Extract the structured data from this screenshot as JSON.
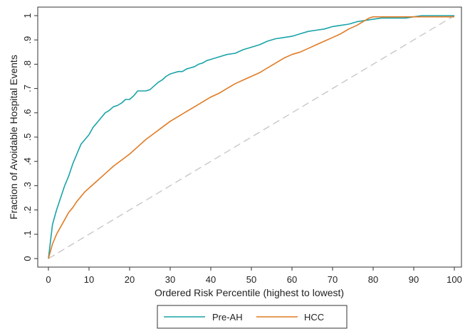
{
  "chart_data": {
    "type": "line",
    "title": "",
    "xlabel": "Ordered Risk Percentile (highest to lowest)",
    "ylabel": "Fraction of Avoidable Hospital Events",
    "xlim": [
      0,
      100
    ],
    "ylim": [
      0,
      1
    ],
    "xticks": [
      "0",
      "10",
      "20",
      "30",
      "40",
      "50",
      "60",
      "70",
      "80",
      "90",
      "100"
    ],
    "yticks": [
      "0",
      ".1",
      ".2",
      ".3",
      ".4",
      ".5",
      ".6",
      ".7",
      ".8",
      ".9",
      "1"
    ],
    "grid": false,
    "legend_position": "bottom-center",
    "series": [
      {
        "name": "Pre-AH",
        "color": "#1aa3a8",
        "x": [
          0,
          1,
          2,
          3,
          4,
          5,
          6,
          7,
          8,
          9,
          10,
          11,
          12,
          13,
          14,
          15,
          16,
          17,
          18,
          19,
          20,
          21,
          22,
          23,
          24,
          25,
          26,
          27,
          28,
          29,
          30,
          31,
          32,
          33,
          34,
          35,
          36,
          37,
          38,
          39,
          40,
          42,
          44,
          46,
          48,
          50,
          52,
          54,
          56,
          58,
          60,
          62,
          64,
          66,
          68,
          70,
          72,
          74,
          76,
          78,
          80,
          82,
          84,
          86,
          88,
          90,
          92,
          94,
          96,
          98,
          100
        ],
        "y": [
          0,
          0.14,
          0.2,
          0.25,
          0.3,
          0.34,
          0.39,
          0.43,
          0.47,
          0.49,
          0.51,
          0.54,
          0.56,
          0.58,
          0.6,
          0.61,
          0.625,
          0.63,
          0.64,
          0.655,
          0.655,
          0.67,
          0.69,
          0.69,
          0.69,
          0.695,
          0.71,
          0.725,
          0.735,
          0.75,
          0.76,
          0.765,
          0.77,
          0.77,
          0.78,
          0.785,
          0.79,
          0.8,
          0.805,
          0.815,
          0.82,
          0.83,
          0.84,
          0.845,
          0.86,
          0.87,
          0.88,
          0.895,
          0.905,
          0.91,
          0.915,
          0.925,
          0.935,
          0.94,
          0.945,
          0.955,
          0.96,
          0.965,
          0.975,
          0.98,
          0.985,
          0.99,
          0.99,
          0.99,
          0.99,
          0.995,
          1.0,
          1.0,
          1.0,
          1.0,
          1.0
        ]
      },
      {
        "name": "HCC",
        "color": "#e07b24",
        "x": [
          0,
          1,
          2,
          3,
          4,
          5,
          6,
          7,
          8,
          9,
          10,
          12,
          14,
          16,
          18,
          20,
          22,
          24,
          26,
          28,
          30,
          32,
          34,
          36,
          38,
          40,
          42,
          44,
          46,
          48,
          50,
          52,
          54,
          56,
          58,
          60,
          62,
          64,
          66,
          68,
          70,
          72,
          74,
          76,
          78,
          79,
          80,
          85,
          90,
          95,
          100
        ],
        "y": [
          0,
          0.06,
          0.1,
          0.13,
          0.16,
          0.19,
          0.21,
          0.235,
          0.255,
          0.275,
          0.29,
          0.32,
          0.35,
          0.38,
          0.405,
          0.43,
          0.46,
          0.49,
          0.515,
          0.54,
          0.565,
          0.585,
          0.605,
          0.625,
          0.645,
          0.665,
          0.68,
          0.7,
          0.72,
          0.735,
          0.75,
          0.765,
          0.785,
          0.805,
          0.825,
          0.84,
          0.85,
          0.865,
          0.88,
          0.895,
          0.91,
          0.925,
          0.945,
          0.96,
          0.98,
          0.99,
          0.995,
          0.995,
          0.995,
          0.995,
          0.995
        ]
      },
      {
        "name": "",
        "color": "#c8c8c8",
        "dashed": true,
        "x": [
          0,
          100
        ],
        "y": [
          0,
          1
        ]
      }
    ]
  }
}
